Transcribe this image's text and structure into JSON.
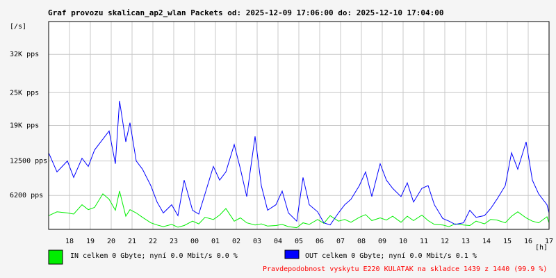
{
  "chart_data": {
    "type": "line",
    "title": "Graf provozu skalican_ap2_wlan Packets od: 2025-12-09 17:06:00 do: 2025-12-10 17:04:00",
    "ylabel": "[/s]",
    "xlabel": "[h]",
    "y_ticks": [
      {
        "value": 6200,
        "label": "6200 pps"
      },
      {
        "value": 12500,
        "label": "12500 pps"
      },
      {
        "value": 19000,
        "label": "19K pps"
      },
      {
        "value": 25000,
        "label": "25K pps"
      },
      {
        "value": 32000,
        "label": "32K pps"
      }
    ],
    "x_ticks": [
      "18",
      "19",
      "20",
      "21",
      "22",
      "23",
      "00",
      "01",
      "02",
      "03",
      "04",
      "05",
      "06",
      "07",
      "08",
      "09",
      "10",
      "11",
      "12",
      "13",
      "14",
      "15",
      "16",
      "17"
    ],
    "x_start": 17.1,
    "ylim": [
      0,
      38000
    ],
    "grid": true,
    "series": [
      {
        "name": "IN celkem 0 Gbyte; nyní 0.0 Mbit/s 0.0 %",
        "color": "#00ee00",
        "x": [
          17.1,
          17.5,
          18.0,
          18.3,
          18.7,
          19.0,
          19.3,
          19.7,
          20.0,
          20.3,
          20.5,
          20.8,
          21.0,
          21.3,
          21.6,
          22.0,
          22.3,
          22.6,
          23.0,
          23.3,
          23.6,
          24.0,
          24.3,
          24.6,
          25.0,
          25.3,
          25.6,
          26.0,
          26.3,
          26.6,
          27.0,
          27.3,
          27.6,
          28.0,
          28.3,
          28.6,
          29.0,
          29.3,
          29.6,
          30.0,
          30.3,
          30.6,
          31.0,
          31.3,
          31.6,
          32.0,
          32.3,
          32.6,
          33.0,
          33.3,
          33.6,
          34.0,
          34.3,
          34.6,
          35.0,
          35.3,
          35.6,
          36.0,
          36.3,
          36.6,
          37.0,
          37.3,
          37.6,
          38.0,
          38.3,
          38.6,
          39.0,
          39.3,
          39.6,
          40.0,
          40.3,
          40.6,
          41.0,
          41.1
        ],
        "values": [
          2500,
          3200,
          3000,
          2800,
          4500,
          3600,
          4000,
          6500,
          5500,
          3500,
          7000,
          2400,
          3600,
          3000,
          2200,
          1200,
          800,
          500,
          900,
          400,
          700,
          1500,
          1000,
          2200,
          1800,
          2600,
          3800,
          1500,
          2100,
          1200,
          800,
          1000,
          600,
          700,
          900,
          500,
          300,
          1200,
          900,
          1800,
          1100,
          2500,
          1500,
          1800,
          1300,
          2200,
          2700,
          1600,
          2100,
          1700,
          2400,
          1300,
          2400,
          1600,
          2600,
          1600,
          900,
          800,
          500,
          1000,
          800,
          700,
          1500,
          1000,
          1800,
          1700,
          1200,
          2400,
          3200,
          2100,
          1500,
          1200,
          2300,
          1200
        ]
      },
      {
        "name": "OUT celkem 0 Gbyte; nyní 0.0 Mbit/s 0.1 %",
        "color": "#0000ff",
        "x": [
          17.1,
          17.5,
          18.0,
          18.3,
          18.7,
          19.0,
          19.3,
          19.7,
          20.0,
          20.3,
          20.5,
          20.8,
          21.0,
          21.3,
          21.6,
          22.0,
          22.3,
          22.6,
          23.0,
          23.3,
          23.6,
          24.0,
          24.3,
          24.6,
          25.0,
          25.3,
          25.6,
          26.0,
          26.3,
          26.6,
          27.0,
          27.3,
          27.6,
          28.0,
          28.3,
          28.6,
          29.0,
          29.3,
          29.6,
          30.0,
          30.3,
          30.6,
          31.0,
          31.3,
          31.6,
          32.0,
          32.3,
          32.6,
          33.0,
          33.3,
          33.6,
          34.0,
          34.3,
          34.6,
          35.0,
          35.3,
          35.6,
          36.0,
          36.3,
          36.6,
          37.0,
          37.3,
          37.6,
          38.0,
          38.3,
          38.6,
          39.0,
          39.3,
          39.6,
          40.0,
          40.3,
          40.6,
          41.0,
          41.1
        ],
        "values": [
          14000,
          10500,
          12500,
          9500,
          13000,
          11500,
          14500,
          16500,
          18000,
          12000,
          23500,
          16000,
          19500,
          12500,
          11000,
          8000,
          5000,
          3000,
          4500,
          2500,
          9000,
          3500,
          2800,
          6500,
          11500,
          9000,
          10500,
          15500,
          11000,
          6000,
          17000,
          8000,
          3500,
          4500,
          7000,
          3000,
          1500,
          9500,
          4500,
          3200,
          1200,
          800,
          3000,
          4500,
          5500,
          8000,
          10500,
          6000,
          12000,
          9000,
          7500,
          6000,
          8500,
          5000,
          7500,
          8000,
          4500,
          2000,
          1500,
          900,
          1200,
          3500,
          2200,
          2500,
          3800,
          5500,
          8000,
          14000,
          11000,
          16000,
          9000,
          6500,
          4500,
          3000
        ]
      }
    ]
  },
  "footer_note": "Pravdepodobnost vyskytu E220 KULATAK na skladce 1439 z 1440 (99.9 %)"
}
